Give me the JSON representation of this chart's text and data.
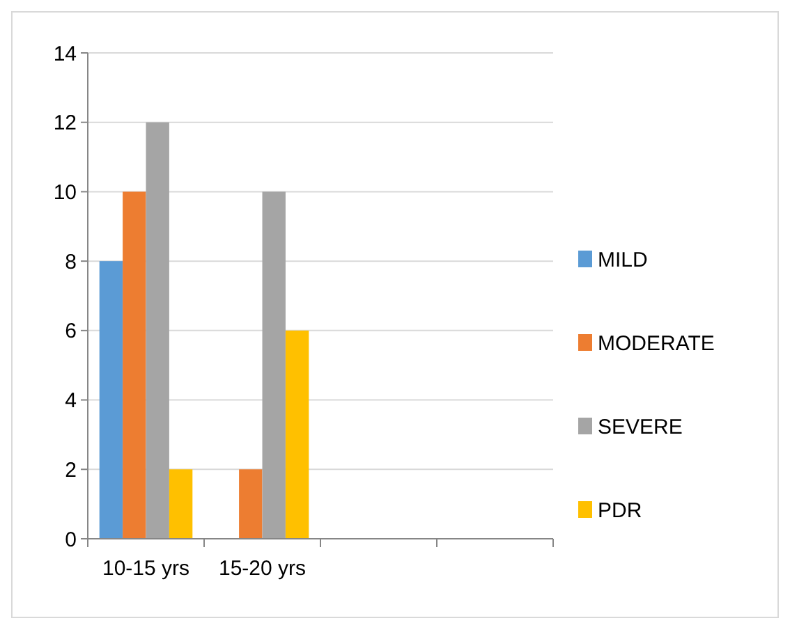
{
  "chart_data": {
    "type": "bar",
    "categories": [
      "10-15 yrs",
      "15-20 yrs",
      null,
      null
    ],
    "series": [
      {
        "name": "MILD",
        "color": "#5b9bd5",
        "values": [
          8,
          0,
          null,
          null
        ]
      },
      {
        "name": "MODERATE",
        "color": "#ed7d31",
        "values": [
          10,
          2,
          null,
          null
        ]
      },
      {
        "name": "SEVERE",
        "color": "#a5a5a5",
        "values": [
          12,
          10,
          null,
          null
        ]
      },
      {
        "name": "PDR",
        "color": "#ffc000",
        "values": [
          2,
          6,
          null,
          null
        ]
      }
    ],
    "ylim": [
      0,
      14
    ],
    "yticks": [
      0,
      2,
      4,
      6,
      8,
      10,
      12,
      14
    ],
    "grid": "y",
    "legend": "right"
  }
}
